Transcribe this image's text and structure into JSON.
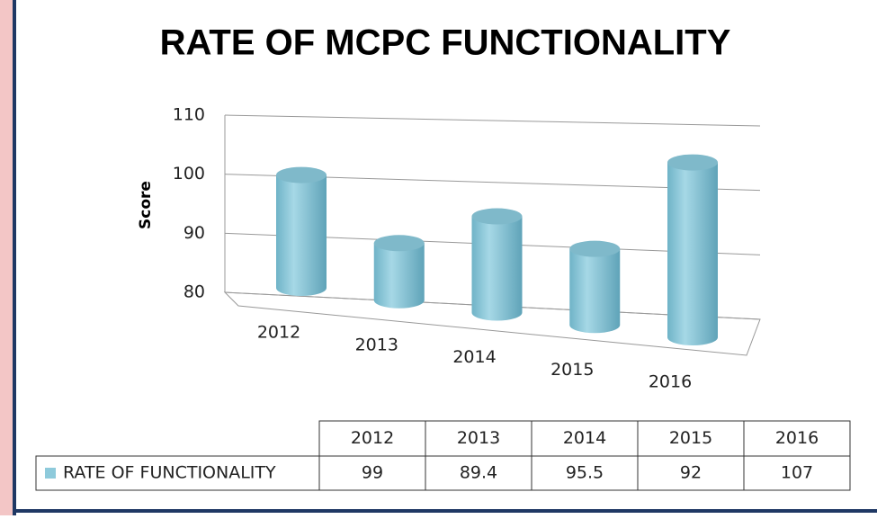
{
  "chart_data": {
    "type": "bar3d",
    "title": "RATE OF MCPC FUNCTIONALITY",
    "y_label": "Score",
    "categories": [
      "2012",
      "2013",
      "2014",
      "2015",
      "2016"
    ],
    "series": [
      {
        "name": "RATE OF FUNCTIONALITY",
        "color": "#8ecadb",
        "values": [
          99,
          89.4,
          95.5,
          92,
          107
        ]
      }
    ],
    "ylim": [
      80,
      110
    ],
    "yticks": [
      80,
      90,
      100,
      110
    ],
    "grid": true,
    "data_table": true
  }
}
